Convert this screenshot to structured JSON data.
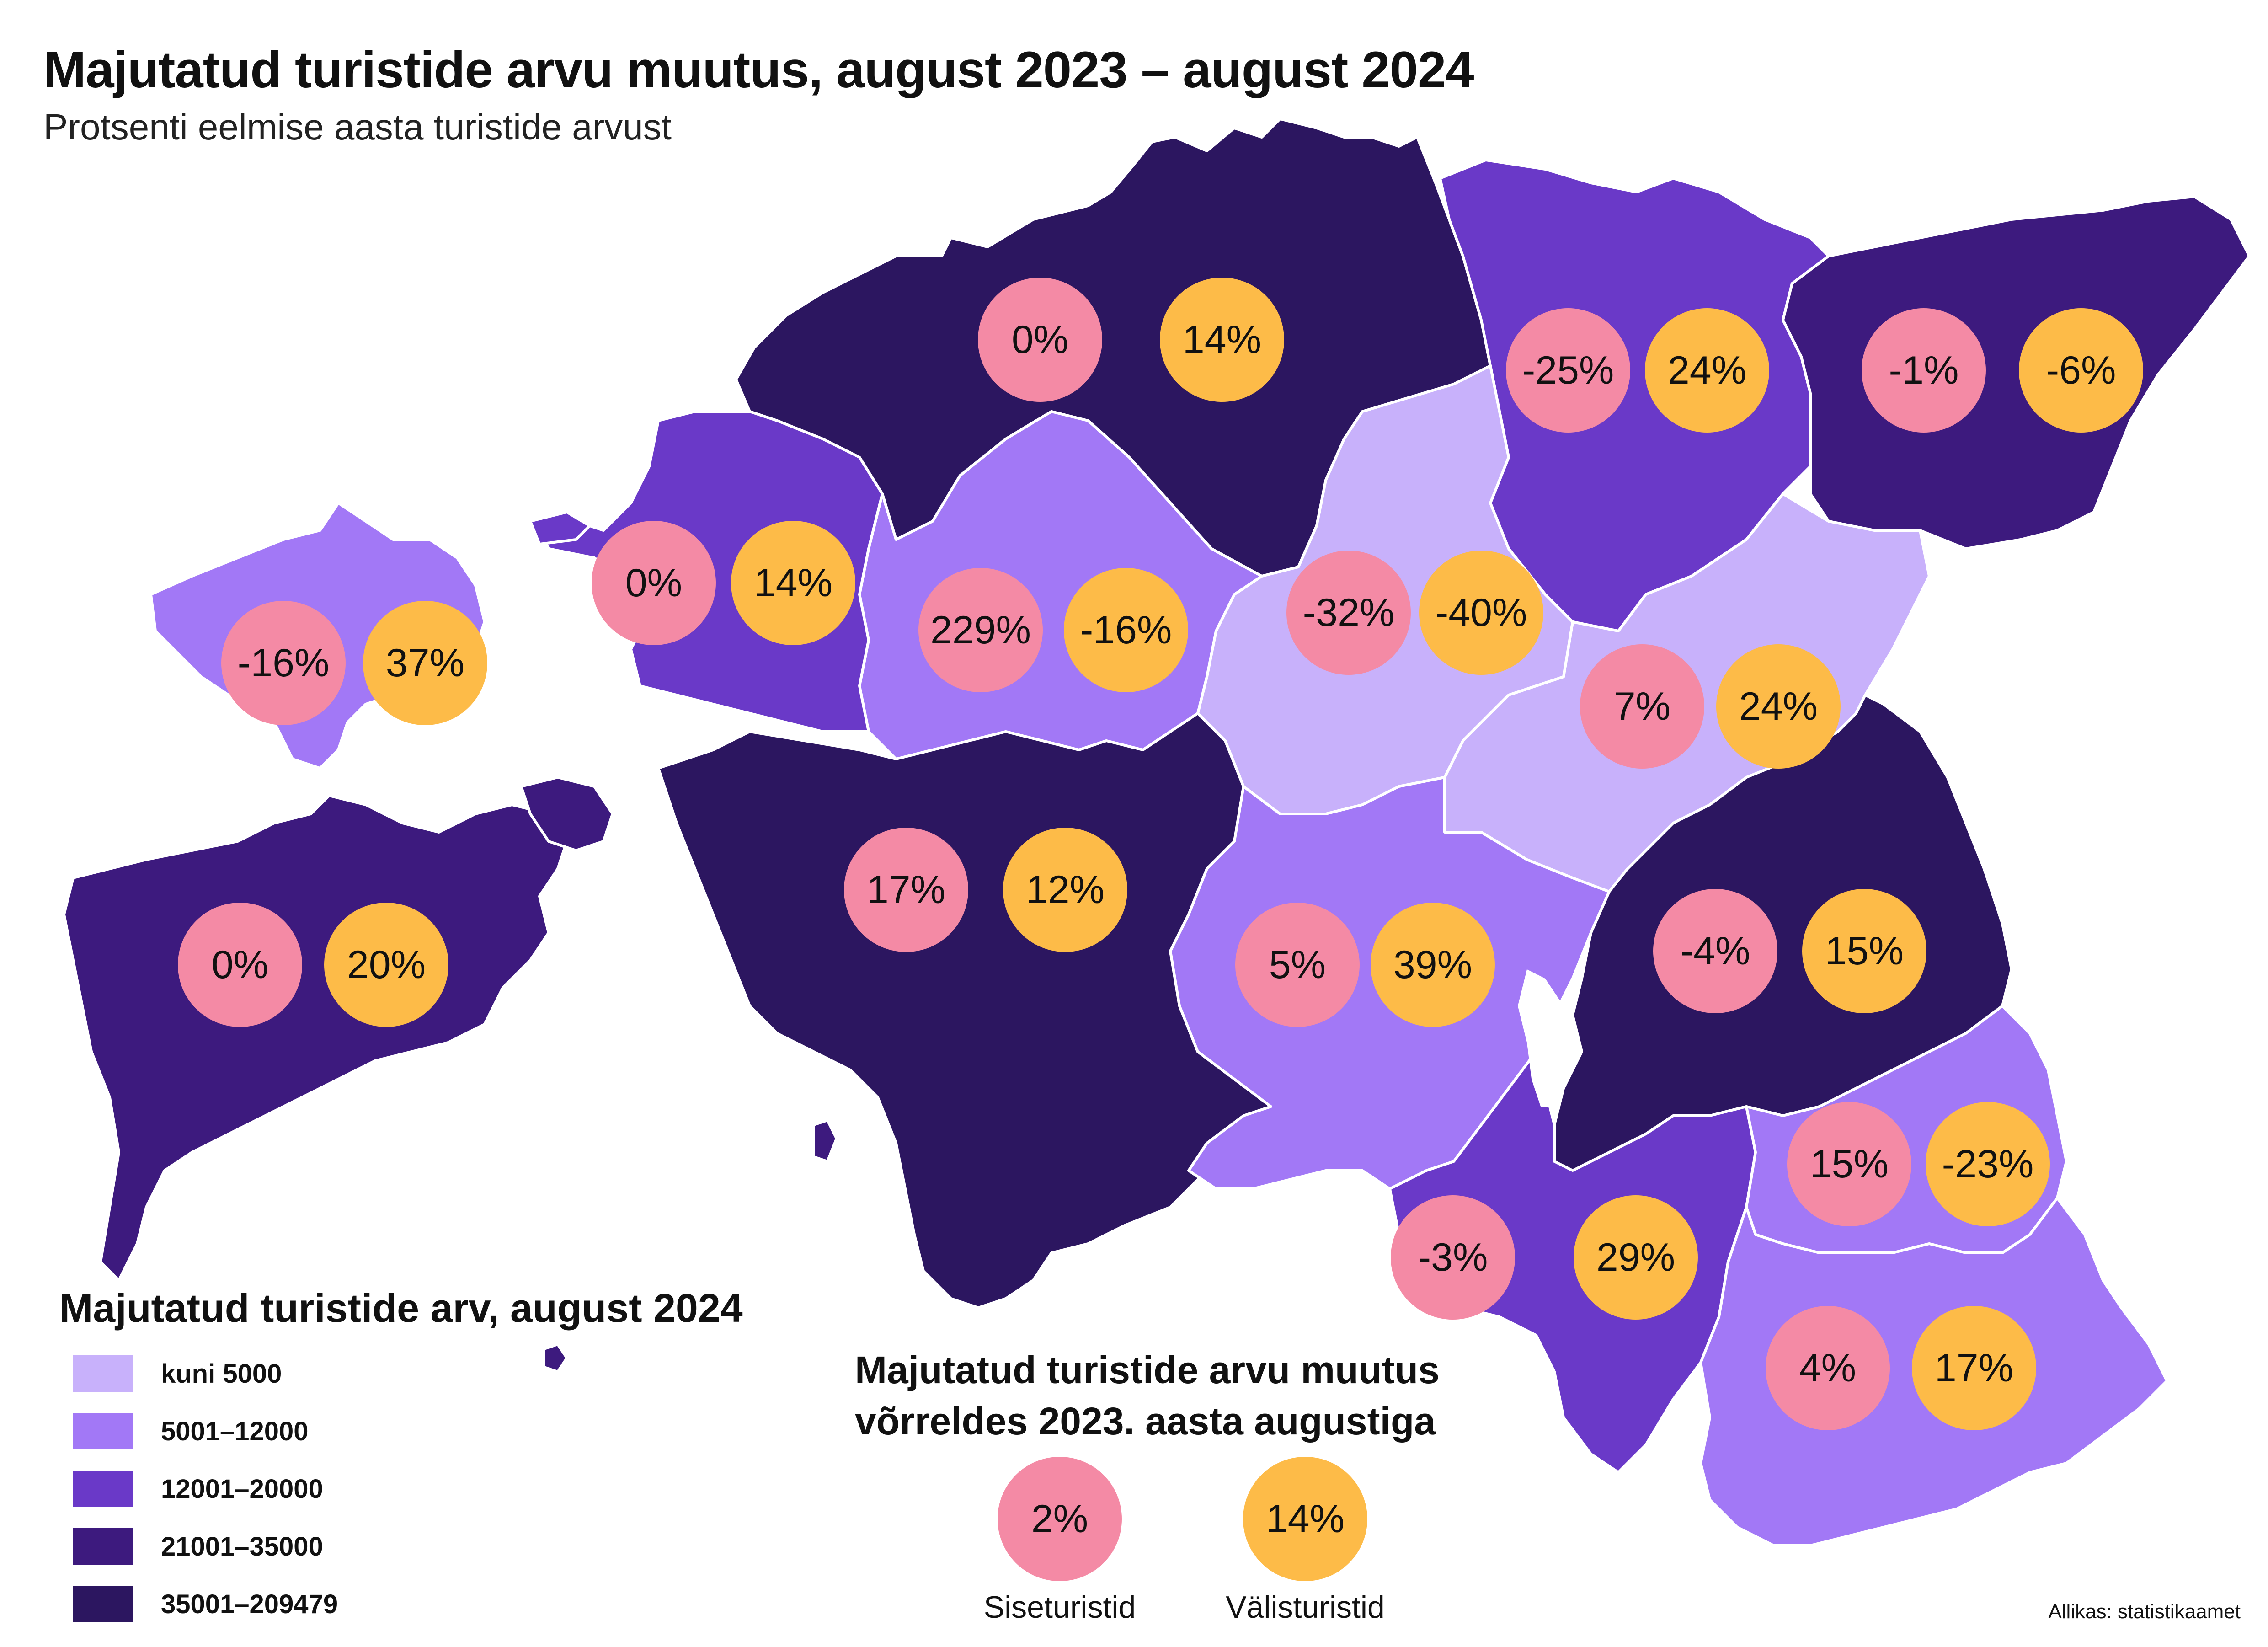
{
  "title": "Majutatud turistide arvu muutus, august 2023 –  august 2024",
  "subtitle": "Protsenti eelmise aasta turistide arvust",
  "colors": {
    "domestic": "#f48aa5",
    "foreign": "#fdbb48",
    "class_1": "#c8b1fb",
    "class_2": "#a278f6",
    "class_3": "#6a39c8",
    "class_4": "#3d1a7e",
    "class_5": "#2c1660"
  },
  "legend": {
    "title": "Majutatud turistide arv, august 2024",
    "items": [
      {
        "label": "kuni 5000",
        "color": "#c8b1fb"
      },
      {
        "label": "5001–12000",
        "color": "#a278f6"
      },
      {
        "label": "12001–20000",
        "color": "#6a39c8"
      },
      {
        "label": "21001–35000",
        "color": "#3d1a7e"
      },
      {
        "label": "35001–209479",
        "color": "#2c1660"
      }
    ]
  },
  "change_legend": {
    "title_line1": "Majutatud turistide arvu muutus",
    "title_line2": "võrreldes 2023. aasta augustiga",
    "domestic_example": "2%",
    "foreign_example": "14%",
    "domestic_label": "Siseturistid",
    "foreign_label": "Välisturistid"
  },
  "regions": [
    {
      "domestic": "0%",
      "foreign": "14%"
    },
    {
      "domestic": "-25%",
      "foreign": "24%"
    },
    {
      "domestic": "-1%",
      "foreign": "-6%"
    },
    {
      "domestic": "0%",
      "foreign": "14%"
    },
    {
      "domestic": "-16%",
      "foreign": "37%"
    },
    {
      "domestic": "229%",
      "foreign": "-16%"
    },
    {
      "domestic": "-32%",
      "foreign": "-40%"
    },
    {
      "domestic": "7%",
      "foreign": "24%"
    },
    {
      "domestic": "17%",
      "foreign": "12%"
    },
    {
      "domestic": "0%",
      "foreign": "20%"
    },
    {
      "domestic": "5%",
      "foreign": "39%"
    },
    {
      "domestic": "-4%",
      "foreign": "15%"
    },
    {
      "domestic": "15%",
      "foreign": "-23%"
    },
    {
      "domestic": "-3%",
      "foreign": "29%"
    },
    {
      "domestic": "4%",
      "foreign": "17%"
    }
  ],
  "source": "Allikas: statistikaamet"
}
